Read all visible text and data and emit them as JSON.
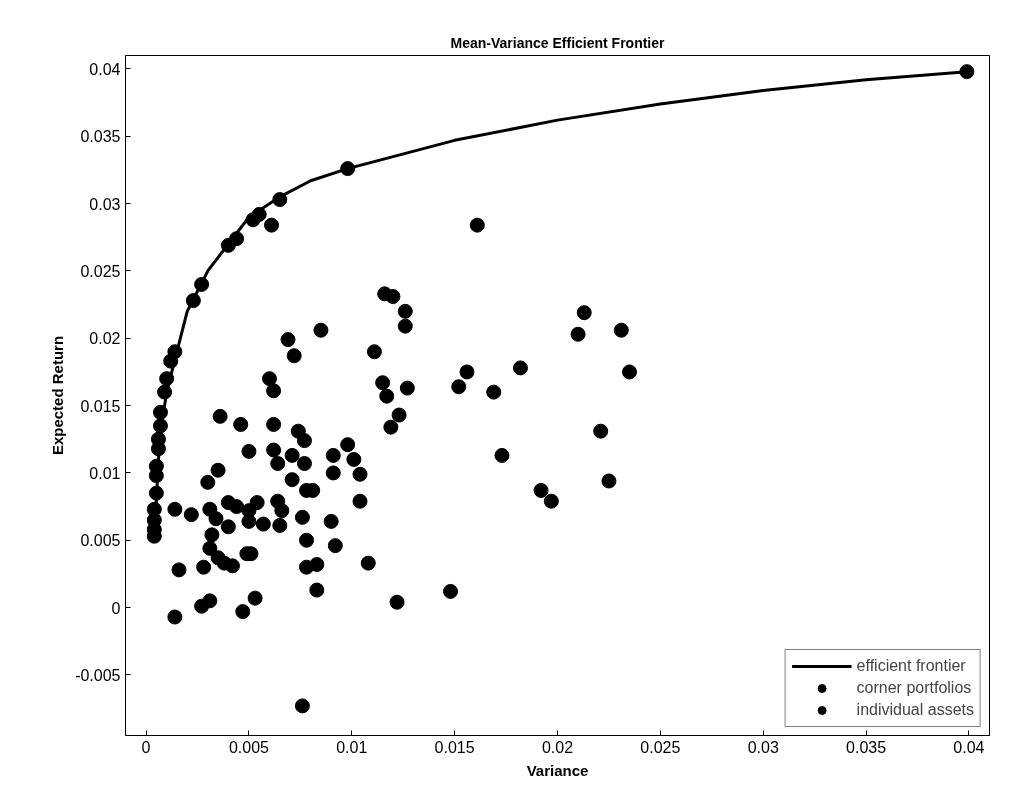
{
  "chart_data": {
    "type": "scatter",
    "title": "Mean-Variance Efficient Frontier",
    "xlabel": "Variance",
    "ylabel": "Expected Return",
    "xlim": [
      -0.001,
      0.041
    ],
    "ylim": [
      -0.0095,
      0.041
    ],
    "xticks": [
      0,
      0.005,
      0.01,
      0.015,
      0.02,
      0.025,
      0.03,
      0.035,
      0.04
    ],
    "yticks": [
      -0.005,
      0,
      0.005,
      0.01,
      0.015,
      0.02,
      0.025,
      0.03,
      0.035,
      0.04
    ],
    "grid": false,
    "legend": "bottom right",
    "series": [
      {
        "name": "efficient frontier",
        "type": "line",
        "color": "#000000",
        "marker": "none",
        "line_style": "solid",
        "x": [
          0.0004,
          0.0005,
          0.0006,
          0.0008,
          0.001,
          0.0015,
          0.002,
          0.003,
          0.004,
          0.005,
          0.0065,
          0.008,
          0.0098,
          0.015,
          0.02,
          0.025,
          0.03,
          0.035,
          0.0399
        ],
        "values": [
          0.0052,
          0.008,
          0.011,
          0.014,
          0.016,
          0.019,
          0.022,
          0.025,
          0.027,
          0.029,
          0.0305,
          0.0317,
          0.0326,
          0.0347,
          0.0362,
          0.0374,
          0.0384,
          0.0392,
          0.0398
        ]
      },
      {
        "name": "corner portfolios",
        "color": "#000000",
        "marker": "circle",
        "x": [
          0.0004,
          0.0004,
          0.0004,
          0.0004,
          0.0005,
          0.0005,
          0.0005,
          0.0006,
          0.0006,
          0.0007,
          0.0007,
          0.0009,
          0.001,
          0.0012,
          0.0014,
          0.0023,
          0.0027,
          0.004,
          0.0044,
          0.0052,
          0.0055,
          0.0065,
          0.0098,
          0.0399
        ],
        "values": [
          0.0053,
          0.0058,
          0.0065,
          0.0073,
          0.0085,
          0.0098,
          0.0105,
          0.0118,
          0.0125,
          0.0135,
          0.0145,
          0.016,
          0.017,
          0.0183,
          0.019,
          0.0228,
          0.024,
          0.0269,
          0.0274,
          0.0288,
          0.0292,
          0.0303,
          0.0326,
          0.0398
        ]
      },
      {
        "name": "individual assets",
        "color": "#000000",
        "marker": "circle",
        "x": [
          0.0061,
          0.0085,
          0.0069,
          0.0072,
          0.006,
          0.0062,
          0.0036,
          0.0046,
          0.0062,
          0.0074,
          0.0077,
          0.005,
          0.0062,
          0.0071,
          0.0064,
          0.0077,
          0.0035,
          0.003,
          0.0071,
          0.0078,
          0.0081,
          0.0014,
          0.0022,
          0.0031,
          0.0034,
          0.004,
          0.0044,
          0.004,
          0.005,
          0.0054,
          0.005,
          0.0057,
          0.0064,
          0.0066,
          0.0065,
          0.0076,
          0.0032,
          0.0031,
          0.0035,
          0.0038,
          0.0042,
          0.0049,
          0.0051,
          0.0078,
          0.0078,
          0.0083,
          0.0083,
          0.0016,
          0.0028,
          0.0027,
          0.0031,
          0.0014,
          0.0047,
          0.0053,
          0.0076,
          0.0116,
          0.012,
          0.0126,
          0.0126,
          0.0111,
          0.0115,
          0.0117,
          0.0127,
          0.0123,
          0.0119,
          0.0156,
          0.0152,
          0.0169,
          0.0173,
          0.0098,
          0.0091,
          0.0101,
          0.0091,
          0.0104,
          0.0104,
          0.009,
          0.0092,
          0.0108,
          0.0122,
          0.0148,
          0.0161,
          0.0213,
          0.021,
          0.0231,
          0.0182,
          0.0235,
          0.0221,
          0.0192,
          0.0197,
          0.0225
        ],
        "values": [
          0.0284,
          0.0206,
          0.0199,
          0.0187,
          0.017,
          0.0161,
          0.0142,
          0.0136,
          0.0136,
          0.0131,
          0.0124,
          0.0116,
          0.0117,
          0.0113,
          0.0107,
          0.0107,
          0.0102,
          0.0093,
          0.0095,
          0.0087,
          0.0087,
          0.0073,
          0.0069,
          0.0073,
          0.0066,
          0.0078,
          0.0075,
          0.006,
          0.0072,
          0.0078,
          0.0064,
          0.0062,
          0.0079,
          0.0072,
          0.0061,
          0.0067,
          0.0054,
          0.0044,
          0.0037,
          0.0033,
          0.0031,
          0.004,
          0.004,
          0.005,
          0.003,
          0.0032,
          0.0013,
          0.0028,
          0.003,
          0.0001,
          0.0005,
          -0.0007,
          -0.0003,
          0.0007,
          -0.0073,
          0.0233,
          0.0231,
          0.022,
          0.0209,
          0.019,
          0.0167,
          0.0157,
          0.0163,
          0.0143,
          0.0134,
          0.0175,
          0.0164,
          0.016,
          0.0113,
          0.0121,
          0.0113,
          0.011,
          0.01,
          0.0099,
          0.0079,
          0.0064,
          0.0046,
          0.0033,
          0.0004,
          0.0012,
          0.0284,
          0.0219,
          0.0203,
          0.0206,
          0.0178,
          0.0175,
          0.0131,
          0.0087,
          0.0079,
          0.0094
        ]
      }
    ]
  }
}
